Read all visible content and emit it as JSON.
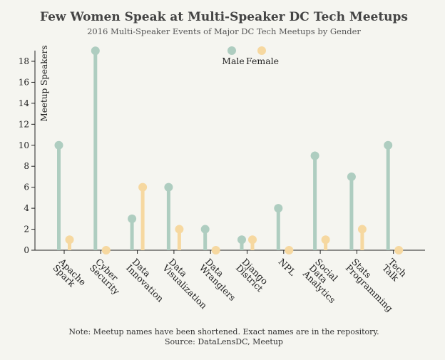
{
  "chart_data": {
    "type": "lollipop",
    "title": "Few Women Speak at Multi-Speaker DC Tech Meetups",
    "subtitle": "2016 Multi-Speaker Events of Major DC Tech Meetups by Gender",
    "xlabel": "",
    "ylabel": "Meetup Speakers",
    "ylim": [
      0,
      19
    ],
    "yticks": [
      0,
      2,
      4,
      6,
      8,
      10,
      12,
      14,
      16,
      18
    ],
    "categories": [
      [
        "Apache",
        "Spark"
      ],
      [
        "Cyber",
        "Security"
      ],
      [
        "Data",
        "Innovation"
      ],
      [
        "Data",
        "Visualization"
      ],
      [
        "Data",
        "Wranglers"
      ],
      [
        "Django",
        "District"
      ],
      [
        "NPL"
      ],
      [
        "Social",
        "Data",
        "Analytics"
      ],
      [
        "Stats",
        "Programming"
      ],
      [
        "Tech",
        "Talk"
      ]
    ],
    "series": [
      {
        "name": "Male",
        "color": "#aecdc0",
        "values": [
          10,
          19,
          3,
          6,
          2,
          1,
          4,
          9,
          7,
          10
        ]
      },
      {
        "name": "Female",
        "color": "#f6d8a0",
        "values": [
          1,
          0,
          6,
          2,
          0,
          1,
          0,
          1,
          2,
          0
        ]
      }
    ],
    "legend": [
      "Male",
      "Female"
    ],
    "legend_position": "top-center",
    "grid": false,
    "footer": [
      "Note: Meetup names have been shortened. Exact names are in the repository.",
      "Source: DataLensDC, Meetup"
    ]
  }
}
